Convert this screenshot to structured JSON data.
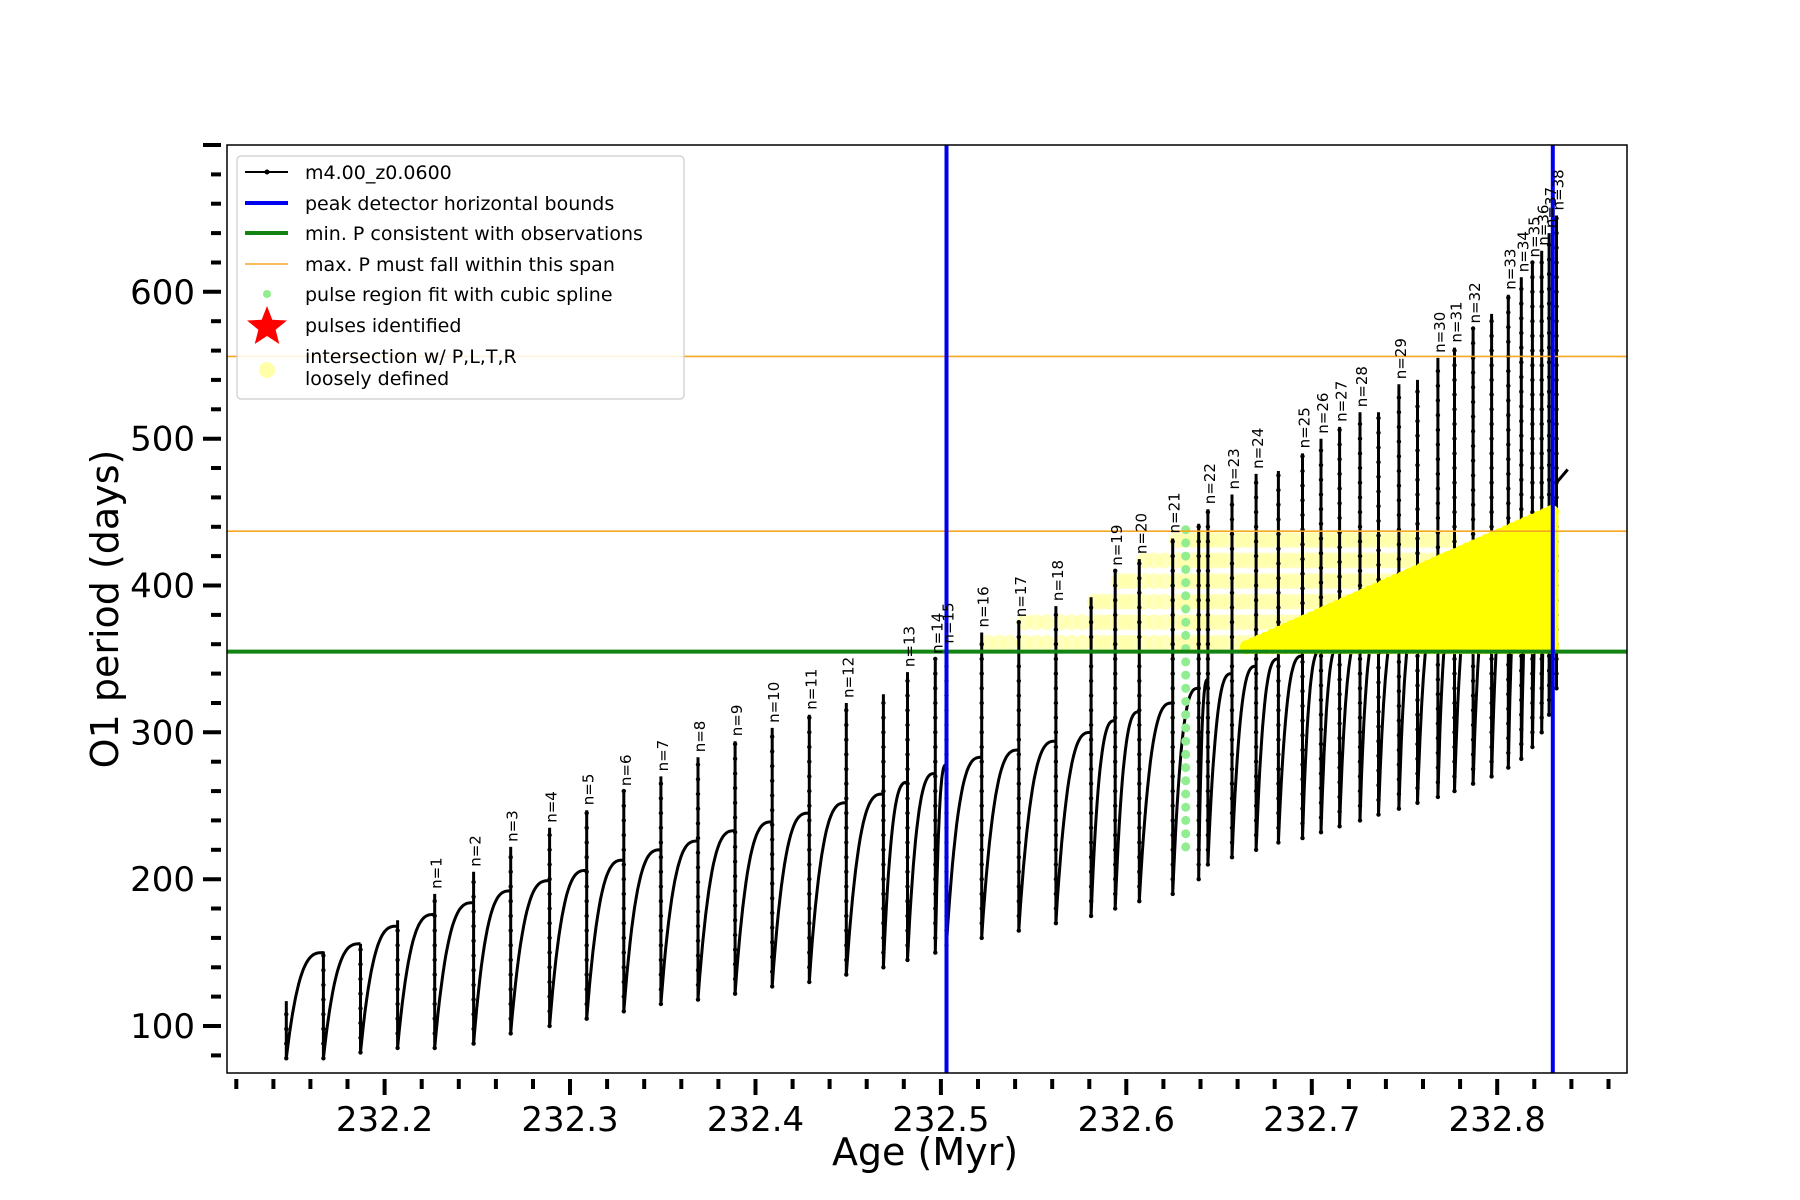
{
  "chart_data": {
    "type": "line",
    "xlabel": "Age (Myr)",
    "ylabel": "O1 period (days)",
    "xlim": [
      232.115,
      232.87
    ],
    "ylim": [
      68,
      700
    ],
    "xticks": [
      232.2,
      232.3,
      232.4,
      232.5,
      232.6,
      232.7,
      232.8
    ],
    "xtick_labels": [
      "232.2",
      "232.3",
      "232.4",
      "232.5",
      "232.6",
      "232.7",
      "232.8"
    ],
    "yticks": [
      100,
      200,
      300,
      400,
      500,
      600
    ],
    "ytick_labels": [
      "100",
      "200",
      "300",
      "400",
      "500",
      "600"
    ],
    "grid": false,
    "legend_placement": "top-left",
    "legend": [
      {
        "label": "m4.00_z0.0600",
        "kind": "line-marker",
        "color": "#000000"
      },
      {
        "label": "peak detector horizontal bounds",
        "kind": "line",
        "color": "#0000ee"
      },
      {
        "label": "min. P consistent with observations",
        "kind": "line",
        "color": "#138313"
      },
      {
        "label": "max. P must fall within this span",
        "kind": "thin-line",
        "color": "#f5a623"
      },
      {
        "label": "pulse region fit with cubic spline",
        "kind": "dot",
        "color": "#90ee90"
      },
      {
        "label": "pulses identified",
        "kind": "star",
        "color": "#ff0000"
      },
      {
        "label": "intersection w/ P,L,T,R",
        "label2": "loosely defined",
        "kind": "circle",
        "color": "#ffffa8"
      }
    ],
    "vertical_lines": [
      {
        "x": 232.503,
        "color": "#0000ee",
        "name": "peak detector horizontal bounds"
      },
      {
        "x": 232.83,
        "color": "#0000ee",
        "name": "peak detector horizontal bounds"
      }
    ],
    "horizontal_lines": [
      {
        "y": 355,
        "color": "#138313",
        "name": "min. P consistent with observations"
      },
      {
        "y": 437,
        "color": "#f5a623",
        "name": "max. P must fall within this span"
      },
      {
        "y": 556,
        "color": "#f5a623",
        "name": "max. P must fall within this span"
      }
    ],
    "series": [
      {
        "name": "m4.00_z0.0600",
        "color": "#000000",
        "pulses": [
          {
            "label": "",
            "x": 232.147,
            "peak": 117,
            "min": 78,
            "end": 150
          },
          {
            "label": "",
            "x": 232.167,
            "peak": 148,
            "min": 78,
            "end": 156
          },
          {
            "label": "",
            "x": 232.187,
            "peak": 156,
            "min": 82,
            "end": 168
          },
          {
            "label": "",
            "x": 232.207,
            "peak": 172,
            "min": 85,
            "end": 176
          },
          {
            "label": "n=1",
            "x": 232.227,
            "peak": 190,
            "min": 85,
            "end": 184
          },
          {
            "label": "n=2",
            "x": 232.248,
            "peak": 205,
            "min": 88,
            "end": 192
          },
          {
            "label": "n=3",
            "x": 232.268,
            "peak": 222,
            "min": 95,
            "end": 199
          },
          {
            "label": "n=4",
            "x": 232.289,
            "peak": 235,
            "min": 100,
            "end": 206
          },
          {
            "label": "n=5",
            "x": 232.309,
            "peak": 247,
            "min": 105,
            "end": 213
          },
          {
            "label": "n=6",
            "x": 232.329,
            "peak": 260,
            "min": 110,
            "end": 220
          },
          {
            "label": "n=7",
            "x": 232.349,
            "peak": 270,
            "min": 115,
            "end": 226
          },
          {
            "label": "n=8",
            "x": 232.369,
            "peak": 283,
            "min": 118,
            "end": 233
          },
          {
            "label": "n=9",
            "x": 232.389,
            "peak": 294,
            "min": 122,
            "end": 239
          },
          {
            "label": "n=10",
            "x": 232.409,
            "peak": 303,
            "min": 127,
            "end": 245
          },
          {
            "label": "n=11",
            "x": 232.429,
            "peak": 312,
            "min": 130,
            "end": 252
          },
          {
            "label": "n=12",
            "x": 232.449,
            "peak": 320,
            "min": 135,
            "end": 258
          },
          {
            "label": "",
            "x": 232.469,
            "peak": 326,
            "min": 140,
            "end": 266
          },
          {
            "label": "n=13",
            "x": 232.482,
            "peak": 341,
            "min": 145,
            "end": 272
          },
          {
            "label": "n=14",
            "x": 232.497,
            "peak": 350,
            "min": 150,
            "end": 278
          },
          {
            "label": "n=15",
            "x": 232.503,
            "peak": 357,
            "min": 155,
            "end": 283
          },
          {
            "label": "n=16",
            "x": 232.522,
            "peak": 368,
            "min": 160,
            "end": 288
          },
          {
            "label": "n=17",
            "x": 232.542,
            "peak": 375,
            "min": 165,
            "end": 294
          },
          {
            "label": "n=18",
            "x": 232.562,
            "peak": 386,
            "min": 170,
            "end": 300
          },
          {
            "label": "",
            "x": 232.581,
            "peak": 392,
            "min": 175,
            "end": 308
          },
          {
            "label": "n=19",
            "x": 232.594,
            "peak": 410,
            "min": 180,
            "end": 314
          },
          {
            "label": "n=20",
            "x": 232.607,
            "peak": 418,
            "min": 185,
            "end": 320
          },
          {
            "label": "n=21",
            "x": 232.625,
            "peak": 432,
            "min": 190,
            "end": 330
          },
          {
            "label": "",
            "x": 232.639,
            "peak": 442,
            "min": 200,
            "end": 336
          },
          {
            "label": "n=22",
            "x": 232.644,
            "peak": 452,
            "min": 210,
            "end": 340
          },
          {
            "label": "n=23",
            "x": 232.657,
            "peak": 462,
            "min": 215,
            "end": 345
          },
          {
            "label": "n=24",
            "x": 232.67,
            "peak": 476,
            "min": 220,
            "end": 350
          },
          {
            "label": "",
            "x": 232.682,
            "peak": 478,
            "min": 225,
            "end": 352
          },
          {
            "label": "n=25",
            "x": 232.695,
            "peak": 490,
            "min": 228,
            "end": 356
          },
          {
            "label": "n=26",
            "x": 232.705,
            "peak": 500,
            "min": 232,
            "end": 360
          },
          {
            "label": "n=27",
            "x": 232.715,
            "peak": 508,
            "min": 236,
            "end": 365
          },
          {
            "label": "n=28",
            "x": 232.726,
            "peak": 518,
            "min": 240,
            "end": 370
          },
          {
            "label": "",
            "x": 232.736,
            "peak": 518,
            "min": 244,
            "end": 375
          },
          {
            "label": "n=29",
            "x": 232.747,
            "peak": 537,
            "min": 248,
            "end": 380
          },
          {
            "label": "",
            "x": 232.757,
            "peak": 540,
            "min": 252,
            "end": 385
          },
          {
            "label": "n=30",
            "x": 232.768,
            "peak": 555,
            "min": 256,
            "end": 390
          },
          {
            "label": "n=31",
            "x": 232.777,
            "peak": 562,
            "min": 260,
            "end": 395
          },
          {
            "label": "n=32",
            "x": 232.787,
            "peak": 575,
            "min": 265,
            "end": 400
          },
          {
            "label": "",
            "x": 232.797,
            "peak": 585,
            "min": 270,
            "end": 410
          },
          {
            "label": "n=33",
            "x": 232.806,
            "peak": 598,
            "min": 276,
            "end": 420
          },
          {
            "label": "n=34",
            "x": 232.813,
            "peak": 610,
            "min": 282,
            "end": 430
          },
          {
            "label": "n=35",
            "x": 232.819,
            "peak": 620,
            "min": 290,
            "end": 440
          },
          {
            "label": "n=36",
            "x": 232.824,
            "peak": 628,
            "min": 300,
            "end": 448
          },
          {
            "label": "n=37",
            "x": 232.828,
            "peak": 640,
            "min": 312,
            "end": 458
          },
          {
            "label": "n=38",
            "x": 232.832,
            "peak": 652,
            "min": 330,
            "end": 470
          }
        ]
      }
    ],
    "tail": {
      "x": [
        232.832,
        232.838
      ],
      "y": [
        470,
        479
      ]
    },
    "spline_region": {
      "x": 232.632,
      "y_min": 222,
      "y_max": 446
    },
    "identified_band": {
      "x_start": 232.665,
      "x_end": 232.833,
      "y_low": 355,
      "y_high_start": 358,
      "y_high_end": 452
    },
    "loose_band": {
      "x_start": 232.5,
      "x_end": 232.77,
      "y_low": 355,
      "y_high": 437
    }
  }
}
